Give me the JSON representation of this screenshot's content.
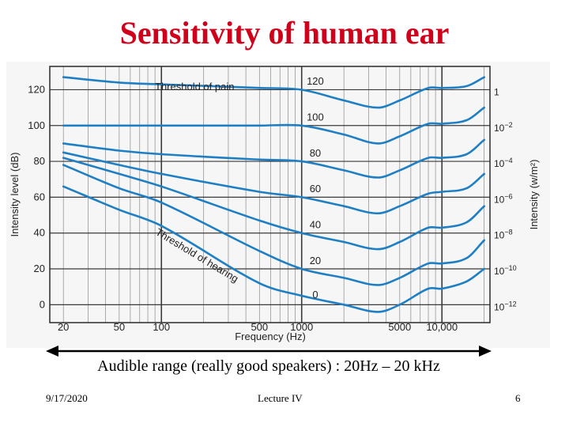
{
  "slide": {
    "title": "Sensitivity of human ear",
    "caption": "Audible range (really good speakers) : 20Hz – 20 kHz",
    "footer_date": "9/17/2020",
    "footer_center": "Lecture IV",
    "page_number": "6"
  },
  "chart_data": {
    "type": "line",
    "title": "",
    "xlabel": "Frequency (Hz)",
    "ylabel": "Intensity level (dB)",
    "ylabel_right": "Intensity (w/m²)",
    "xscale": "log",
    "xlim": [
      16,
      22000
    ],
    "ylim": [
      -10,
      133
    ],
    "x_ticks": [
      20,
      50,
      100,
      500,
      1000,
      5000,
      10000
    ],
    "x_tick_labels": [
      "20",
      "50",
      "100",
      "500",
      "1000",
      "5000",
      "10,000"
    ],
    "y_ticks": [
      0,
      20,
      40,
      60,
      80,
      100,
      120
    ],
    "y_tick_labels": [
      "0",
      "20",
      "40",
      "60",
      "80",
      "100",
      "120"
    ],
    "right_ticks": [
      0,
      20,
      40,
      60,
      80,
      100,
      120
    ],
    "right_tick_labels": [
      {
        "base": "10",
        "exp": "−12"
      },
      {
        "base": "10",
        "exp": "−10"
      },
      {
        "base": "10",
        "exp": "−8"
      },
      {
        "base": "10",
        "exp": "−6"
      },
      {
        "base": "10",
        "exp": "−4"
      },
      {
        "base": "10",
        "exp": "−2"
      },
      {
        "base": "1",
        "exp": ""
      }
    ],
    "grid": true,
    "line_color": "#1f7fc4",
    "annotations": {
      "threshold_of_pain": "Threshold of pain",
      "threshold_of_hearing": "Threshold of hearing"
    },
    "series": [
      {
        "name": "120",
        "x": [
          20,
          50,
          100,
          500,
          1000,
          2000,
          3500,
          5000,
          8000,
          10000,
          15000,
          20000
        ],
        "y": [
          127,
          124,
          123,
          121,
          120,
          114,
          110,
          114,
          121,
          121,
          122,
          127
        ]
      },
      {
        "name": "100",
        "x": [
          20,
          50,
          100,
          500,
          1000,
          2000,
          3500,
          5000,
          8000,
          10000,
          15000,
          20000
        ],
        "y": [
          100,
          100,
          100,
          100,
          100,
          95,
          90,
          94,
          101,
          101,
          103,
          110
        ]
      },
      {
        "name": "80",
        "x": [
          20,
          50,
          100,
          500,
          1000,
          2000,
          3500,
          5000,
          8000,
          10000,
          15000,
          20000
        ],
        "y": [
          90,
          86,
          84,
          81,
          80,
          75,
          71,
          75,
          82,
          82,
          84,
          92
        ]
      },
      {
        "name": "60",
        "x": [
          20,
          50,
          100,
          500,
          1000,
          2000,
          3500,
          5000,
          8000,
          10000,
          15000,
          20000
        ],
        "y": [
          85,
          78,
          73,
          63,
          60,
          55,
          51,
          55,
          62,
          63,
          65,
          73
        ]
      },
      {
        "name": "40",
        "x": [
          20,
          50,
          100,
          500,
          1000,
          2000,
          3500,
          5000,
          8000,
          10000,
          15000,
          20000
        ],
        "y": [
          82,
          73,
          66,
          47,
          40,
          35,
          31,
          35,
          43,
          43,
          46,
          55
        ]
      },
      {
        "name": "20",
        "x": [
          20,
          50,
          100,
          500,
          1000,
          2000,
          3500,
          5000,
          8000,
          10000,
          15000,
          20000
        ],
        "y": [
          78,
          65,
          57,
          30,
          20,
          15,
          11,
          15,
          23,
          23,
          26,
          36
        ]
      },
      {
        "name": "0",
        "x": [
          20,
          50,
          100,
          500,
          1000,
          2000,
          3500,
          5000,
          8000,
          10000,
          15000,
          20000
        ],
        "y": [
          66,
          53,
          44,
          12,
          5,
          0,
          -4,
          0,
          9,
          9,
          13,
          20
        ]
      }
    ],
    "curve_labels": [
      {
        "text": "120",
        "x": 1250,
        "y": 121
      },
      {
        "text": "100",
        "x": 1250,
        "y": 101
      },
      {
        "text": "80",
        "x": 1250,
        "y": 81
      },
      {
        "text": "60",
        "x": 1250,
        "y": 61
      },
      {
        "text": "40",
        "x": 1250,
        "y": 41
      },
      {
        "text": "20",
        "x": 1250,
        "y": 21
      },
      {
        "text": "0",
        "x": 1250,
        "y": 2
      }
    ]
  }
}
